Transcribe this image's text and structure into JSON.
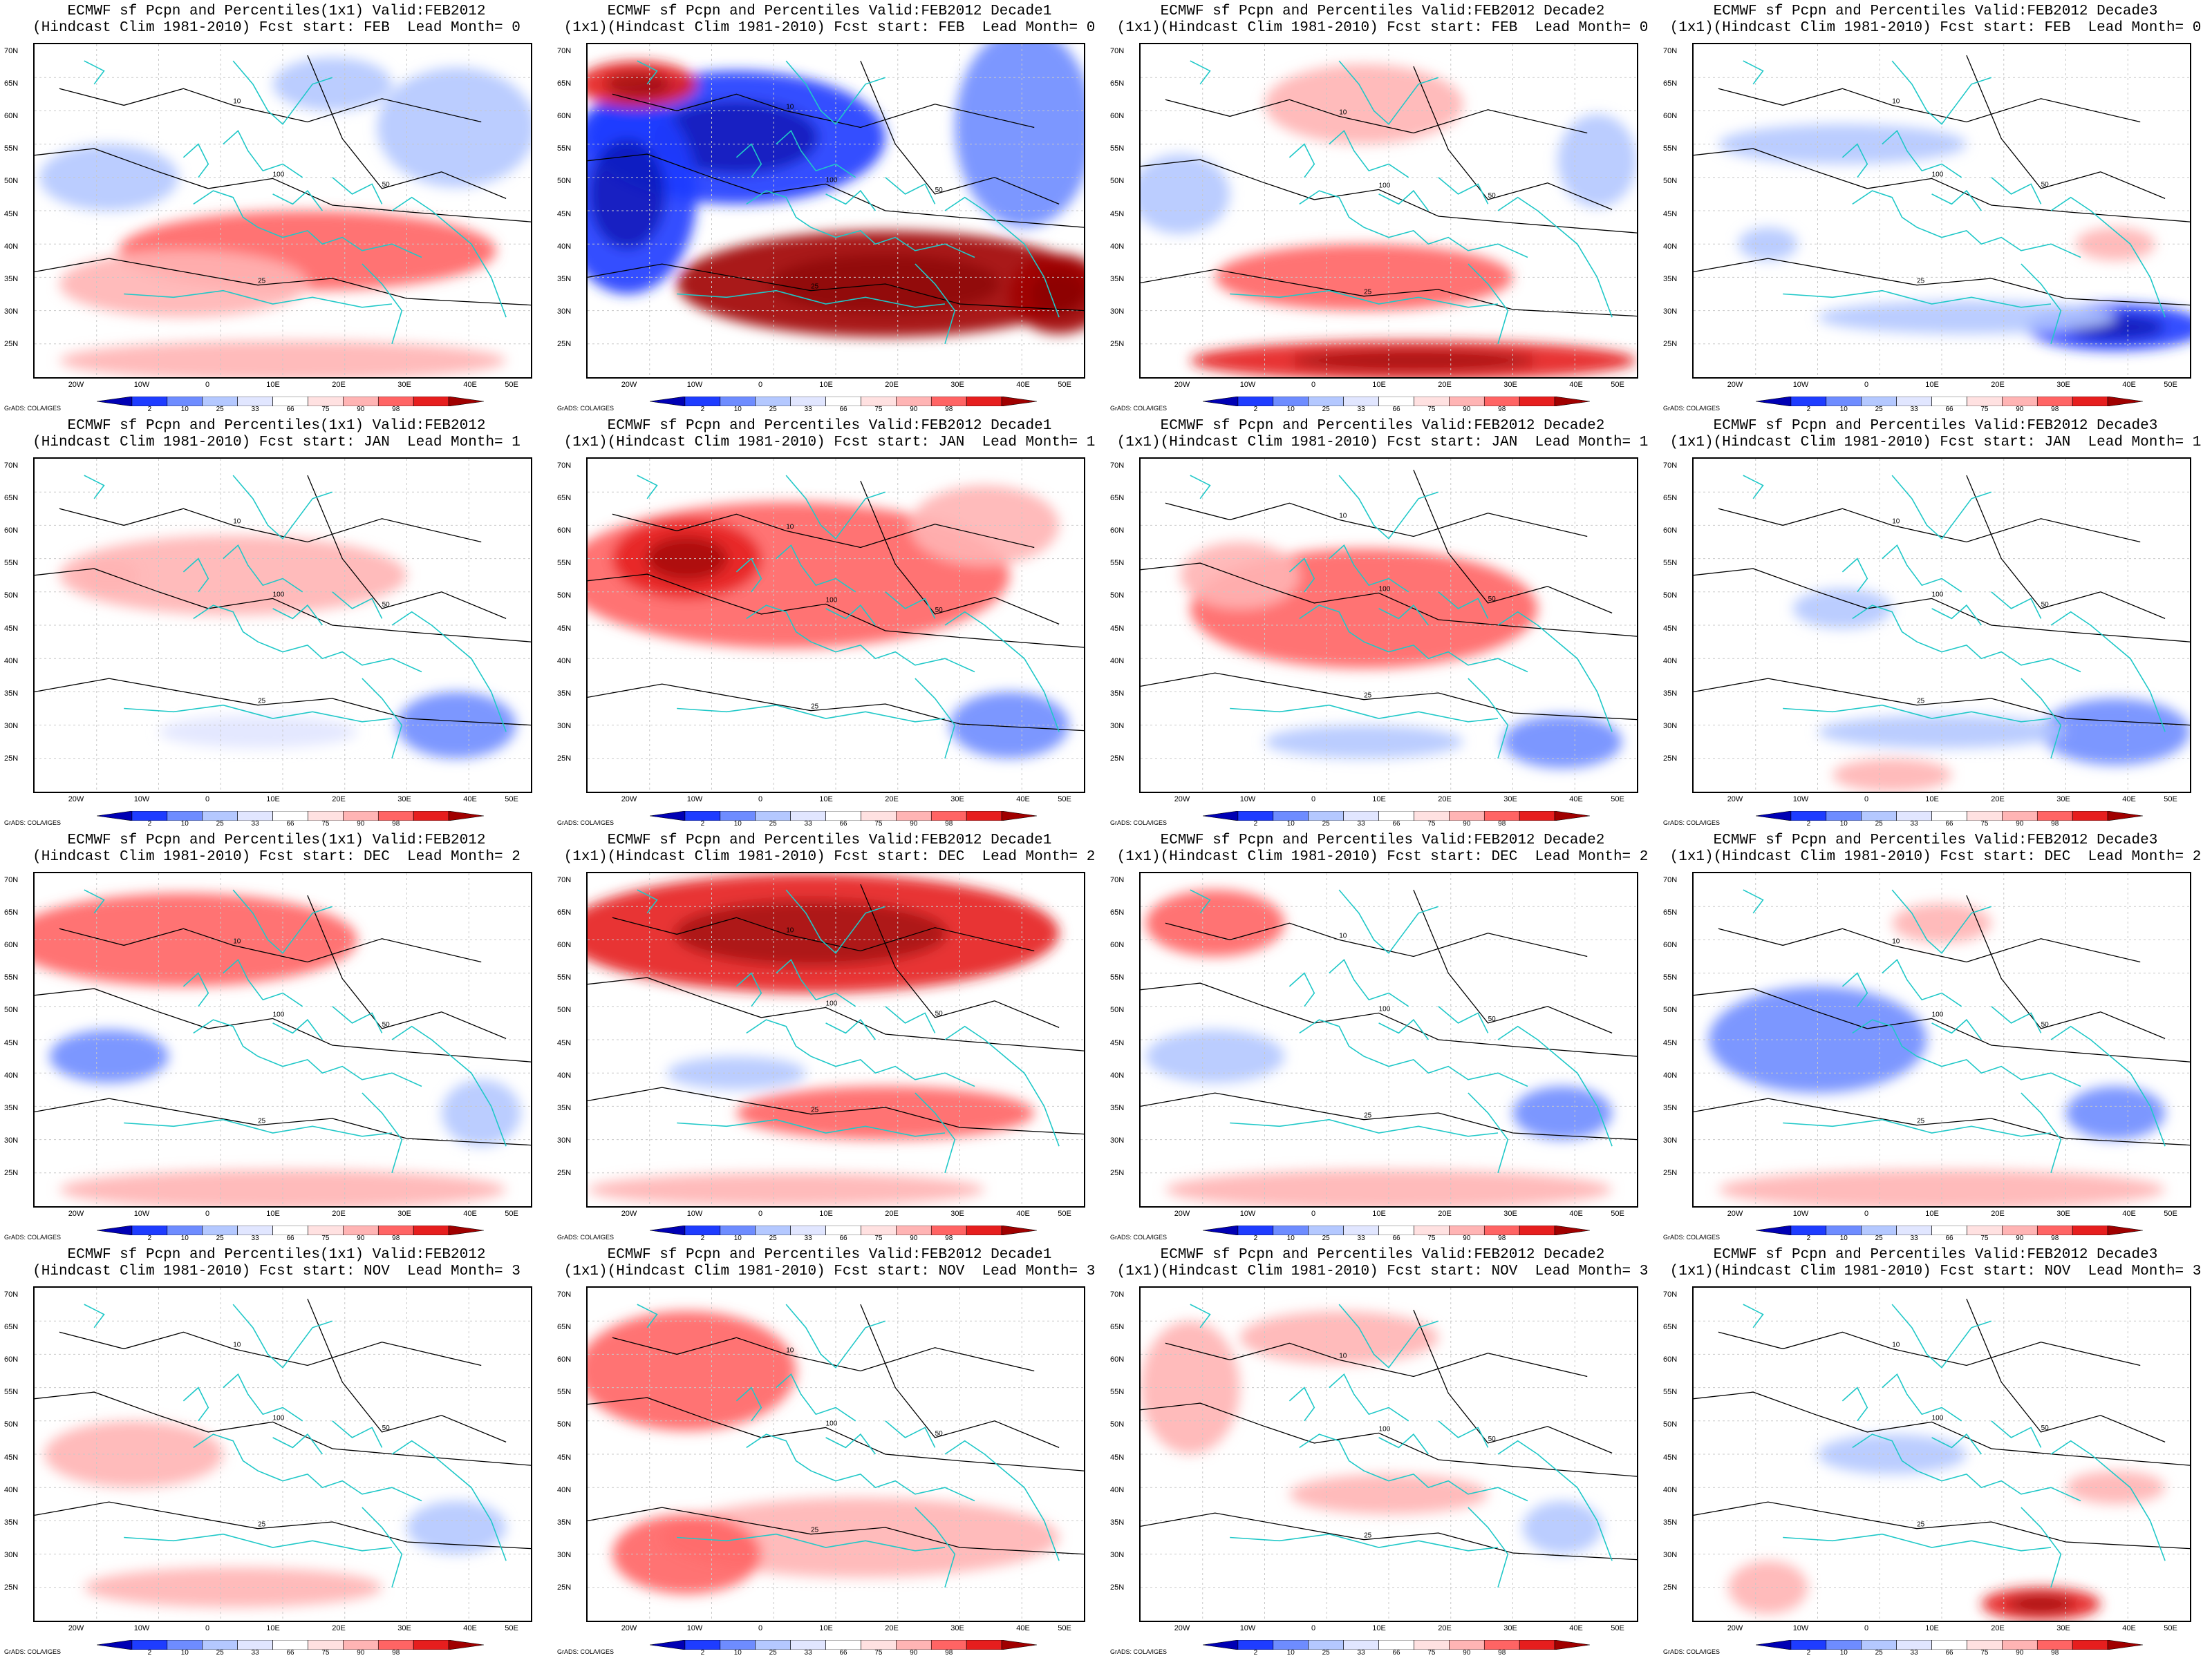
{
  "figure": {
    "credit": "GrADS: COLA/IGES",
    "lat_labels": [
      "70N",
      "65N",
      "60N",
      "55N",
      "50N",
      "45N",
      "40N",
      "35N",
      "30N",
      "25N"
    ],
    "lon_labels": [
      "20W",
      "10W",
      "0",
      "10E",
      "20E",
      "30E",
      "40E",
      "50E"
    ],
    "colorbar_ticks": [
      "2",
      "10",
      "25",
      "33",
      "66",
      "75",
      "90",
      "98"
    ],
    "colorbar_colors": [
      "#0000b4",
      "#1e3cff",
      "#6e8cff",
      "#b4c8ff",
      "#e1e6ff",
      "#ffffff",
      "#ffe1e1",
      "#ffb4b4",
      "#ff6464",
      "#e61e1e",
      "#a00000"
    ],
    "coast_color": "#20c8c8",
    "contour_color": "#000000"
  },
  "panels": [
    {
      "title1": "ECMWF sf Pcpn and Percentiles(1x1) Valid:FEB2012",
      "title2": "(Hindcast Clim 1981-2010) Fcst start: FEB  Lead Month= 0",
      "pattern": [
        [
          0.55,
          0.62,
          0.38,
          0.12,
          8
        ],
        [
          0.3,
          0.72,
          0.25,
          0.1,
          7
        ],
        [
          0.15,
          0.4,
          0.14,
          0.1,
          3
        ],
        [
          0.85,
          0.25,
          0.16,
          0.18,
          3
        ],
        [
          0.6,
          0.12,
          0.12,
          0.08,
          3
        ],
        [
          0.5,
          0.95,
          0.45,
          0.06,
          7
        ]
      ]
    },
    {
      "title1": "ECMWF sf Pcpn and Percentiles Valid:FEB2012 Decade1",
      "title2": "(1x1)(Hindcast Clim 1981-2010) Fcst start: FEB  Lead Month= 0",
      "pattern": [
        [
          0.6,
          0.72,
          0.42,
          0.16,
          10
        ],
        [
          0.3,
          0.28,
          0.3,
          0.2,
          1
        ],
        [
          0.08,
          0.45,
          0.14,
          0.3,
          1
        ],
        [
          0.88,
          0.25,
          0.14,
          0.3,
          2
        ],
        [
          0.1,
          0.12,
          0.12,
          0.07,
          9
        ],
        [
          0.95,
          0.75,
          0.1,
          0.12,
          10
        ]
      ]
    },
    {
      "title1": "ECMWF sf Pcpn and Percentiles Valid:FEB2012 Decade2",
      "title2": "(1x1)(Hindcast Clim 1981-2010) Fcst start: FEB  Lead Month= 0",
      "pattern": [
        [
          0.45,
          0.7,
          0.3,
          0.1,
          8
        ],
        [
          0.55,
          0.95,
          0.45,
          0.06,
          9
        ],
        [
          0.45,
          0.18,
          0.2,
          0.12,
          7
        ],
        [
          0.08,
          0.45,
          0.1,
          0.12,
          3
        ],
        [
          0.92,
          0.35,
          0.08,
          0.14,
          3
        ]
      ]
    },
    {
      "title1": "ECMWF sf Pcpn and Percentiles Valid:FEB2012 Decade3",
      "title2": "(1x1)(Hindcast Clim 1981-2010) Fcst start: FEB  Lead Month= 0",
      "pattern": [
        [
          0.85,
          0.85,
          0.18,
          0.07,
          1
        ],
        [
          0.55,
          0.82,
          0.3,
          0.05,
          3
        ],
        [
          0.3,
          0.3,
          0.25,
          0.06,
          3
        ],
        [
          0.85,
          0.6,
          0.08,
          0.05,
          7
        ],
        [
          0.15,
          0.6,
          0.06,
          0.05,
          3
        ]
      ]
    },
    {
      "title1": "ECMWF sf Pcpn and Percentiles(1x1) Valid:FEB2012",
      "title2": "(Hindcast Clim 1981-2010) Fcst start: JAN  Lead Month= 1",
      "pattern": [
        [
          0.4,
          0.35,
          0.35,
          0.12,
          7
        ],
        [
          0.85,
          0.8,
          0.12,
          0.1,
          2
        ],
        [
          0.45,
          0.82,
          0.2,
          0.05,
          4
        ],
        [
          0.15,
          0.35,
          0.06,
          0.05,
          7
        ]
      ]
    },
    {
      "title1": "ECMWF sf Pcpn and Percentiles Valid:FEB2012 Decade1",
      "title2": "(1x1)(Hindcast Clim 1981-2010) Fcst start: JAN  Lead Month= 1",
      "pattern": [
        [
          0.4,
          0.35,
          0.45,
          0.22,
          8
        ],
        [
          0.2,
          0.3,
          0.15,
          0.12,
          9
        ],
        [
          0.85,
          0.8,
          0.12,
          0.1,
          2
        ],
        [
          0.8,
          0.2,
          0.15,
          0.12,
          7
        ]
      ]
    },
    {
      "title1": "ECMWF sf Pcpn and Percentiles Valid:FEB2012 Decade2",
      "title2": "(1x1)(Hindcast Clim 1981-2010) Fcst start: JAN  Lead Month= 1",
      "pattern": [
        [
          0.45,
          0.45,
          0.35,
          0.18,
          8
        ],
        [
          0.2,
          0.35,
          0.12,
          0.1,
          7
        ],
        [
          0.85,
          0.85,
          0.12,
          0.08,
          2
        ],
        [
          0.45,
          0.85,
          0.2,
          0.05,
          3
        ]
      ]
    },
    {
      "title1": "ECMWF sf Pcpn and Percentiles Valid:FEB2012 Decade3",
      "title2": "(1x1)(Hindcast Clim 1981-2010) Fcst start: JAN  Lead Month= 1",
      "pattern": [
        [
          0.85,
          0.82,
          0.15,
          0.1,
          2
        ],
        [
          0.5,
          0.82,
          0.25,
          0.05,
          3
        ],
        [
          0.4,
          0.95,
          0.12,
          0.05,
          7
        ],
        [
          0.3,
          0.45,
          0.1,
          0.06,
          3
        ]
      ]
    },
    {
      "title1": "ECMWF sf Pcpn and Percentiles(1x1) Valid:FEB2012",
      "title2": "(Hindcast Clim 1981-2010) Fcst start: DEC  Lead Month= 2",
      "pattern": [
        [
          0.3,
          0.2,
          0.35,
          0.14,
          8
        ],
        [
          0.15,
          0.55,
          0.12,
          0.08,
          2
        ],
        [
          0.5,
          0.95,
          0.45,
          0.06,
          7
        ],
        [
          0.9,
          0.72,
          0.08,
          0.1,
          3
        ]
      ]
    },
    {
      "title1": "ECMWF sf Pcpn and Percentiles Valid:FEB2012 Decade1",
      "title2": "(1x1)(Hindcast Clim 1981-2010) Fcst start: DEC  Lead Month= 2",
      "pattern": [
        [
          0.45,
          0.18,
          0.5,
          0.18,
          9
        ],
        [
          0.6,
          0.72,
          0.3,
          0.08,
          8
        ],
        [
          0.3,
          0.6,
          0.14,
          0.05,
          3
        ],
        [
          0.4,
          0.95,
          0.4,
          0.05,
          7
        ]
      ]
    },
    {
      "title1": "ECMWF sf Pcpn and Percentiles Valid:FEB2012 Decade2",
      "title2": "(1x1)(Hindcast Clim 1981-2010) Fcst start: DEC  Lead Month= 2",
      "pattern": [
        [
          0.15,
          0.15,
          0.14,
          0.1,
          8
        ],
        [
          0.15,
          0.55,
          0.14,
          0.08,
          3
        ],
        [
          0.5,
          0.95,
          0.45,
          0.06,
          7
        ],
        [
          0.85,
          0.72,
          0.1,
          0.08,
          2
        ]
      ]
    },
    {
      "title1": "ECMWF sf Pcpn and Percentiles Valid:FEB2012 Decade3",
      "title2": "(1x1)(Hindcast Clim 1981-2010) Fcst start: DEC  Lead Month= 2",
      "pattern": [
        [
          0.25,
          0.5,
          0.22,
          0.16,
          2
        ],
        [
          0.5,
          0.95,
          0.45,
          0.06,
          7
        ],
        [
          0.85,
          0.72,
          0.1,
          0.08,
          2
        ],
        [
          0.5,
          0.15,
          0.1,
          0.06,
          7
        ]
      ]
    },
    {
      "title1": "ECMWF sf Pcpn and Percentiles(1x1) Valid:FEB2012",
      "title2": "(Hindcast Clim 1981-2010) Fcst start: NOV  Lead Month= 3",
      "pattern": [
        [
          0.2,
          0.5,
          0.18,
          0.1,
          7
        ],
        [
          0.4,
          0.9,
          0.3,
          0.06,
          7
        ],
        [
          0.85,
          0.72,
          0.1,
          0.08,
          3
        ]
      ]
    },
    {
      "title1": "ECMWF sf Pcpn and Percentiles Valid:FEB2012 Decade1",
      "title2": "(1x1)(Hindcast Clim 1981-2010) Fcst start: NOV  Lead Month= 3",
      "pattern": [
        [
          0.2,
          0.25,
          0.22,
          0.18,
          8
        ],
        [
          0.55,
          0.75,
          0.4,
          0.12,
          7
        ],
        [
          0.2,
          0.8,
          0.15,
          0.12,
          8
        ]
      ]
    },
    {
      "title1": "ECMWF sf Pcpn and Percentiles Valid:FEB2012 Decade2",
      "title2": "(1x1)(Hindcast Clim 1981-2010) Fcst start: NOV  Lead Month= 3",
      "pattern": [
        [
          0.1,
          0.3,
          0.1,
          0.2,
          7
        ],
        [
          0.4,
          0.15,
          0.2,
          0.08,
          7
        ],
        [
          0.85,
          0.72,
          0.08,
          0.08,
          3
        ],
        [
          0.5,
          0.62,
          0.2,
          0.06,
          7
        ]
      ]
    },
    {
      "title1": "ECMWF sf Pcpn and Percentiles Valid:FEB2012 Decade3",
      "title2": "(1x1)(Hindcast Clim 1981-2010) Fcst start: NOV  Lead Month= 3",
      "pattern": [
        [
          0.7,
          0.95,
          0.12,
          0.05,
          9
        ],
        [
          0.4,
          0.5,
          0.15,
          0.06,
          3
        ],
        [
          0.85,
          0.6,
          0.1,
          0.05,
          7
        ],
        [
          0.15,
          0.9,
          0.08,
          0.08,
          7
        ]
      ]
    }
  ]
}
